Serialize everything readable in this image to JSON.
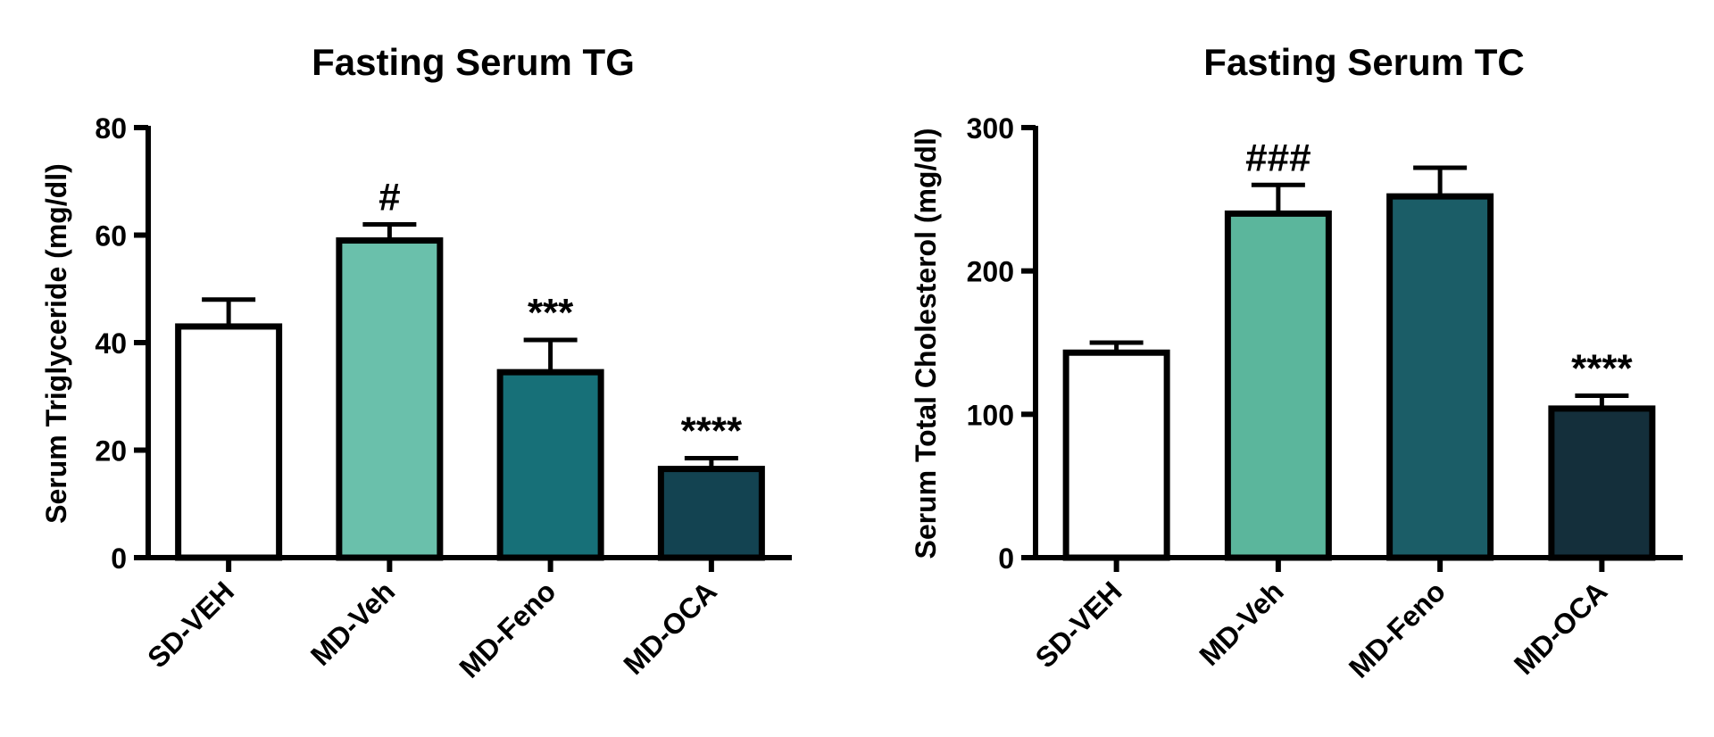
{
  "chart_data": [
    {
      "type": "bar",
      "title": "Fasting Serum TG",
      "xlabel": "",
      "ylabel": "Serum Triglyceride (mg/dl)",
      "ylim": [
        0,
        80
      ],
      "yticks": [
        0,
        20,
        40,
        60,
        80
      ],
      "categories": [
        "SD-VEH",
        "MD-Veh",
        "MD-Feno",
        "MD-OCA"
      ],
      "values": [
        43,
        59,
        34.5,
        16.5
      ],
      "errors": [
        5,
        3,
        6,
        2
      ],
      "bar_colors": [
        "#ffffff",
        "#6ac0ab",
        "#177078",
        "#134351"
      ],
      "annotations": [
        "",
        "#",
        "***",
        "****"
      ]
    },
    {
      "type": "bar",
      "title": "Fasting Serum TC",
      "xlabel": "",
      "ylabel": "Serum Total Cholesterol (mg/dl)",
      "ylim": [
        0,
        300
      ],
      "yticks": [
        0,
        100,
        200,
        300
      ],
      "categories": [
        "SD-VEH",
        "MD-Veh",
        "MD-Feno",
        "MD-OCA"
      ],
      "values": [
        143,
        240,
        252,
        104
      ],
      "errors": [
        7,
        20,
        20,
        9
      ],
      "bar_colors": [
        "#ffffff",
        "#5bb69c",
        "#1b5d67",
        "#142f3b"
      ],
      "annotations": [
        "",
        "###",
        "",
        "****"
      ]
    }
  ]
}
